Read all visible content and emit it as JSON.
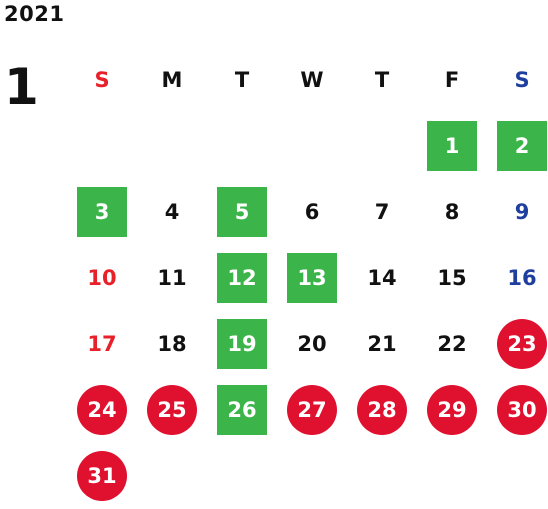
{
  "year": "2021",
  "month": "1",
  "weekdays": [
    "S",
    "M",
    "T",
    "W",
    "T",
    "F",
    "S"
  ],
  "colors": {
    "sunday": "#e8202a",
    "saturday": "#1f3f9f",
    "green_highlight": "#3bb54a",
    "red_highlight": "#e0102f"
  },
  "days": [
    {
      "day": "1",
      "style": "green"
    },
    {
      "day": "2",
      "style": "green"
    },
    {
      "day": "3",
      "style": "green"
    },
    {
      "day": "4",
      "style": "plain"
    },
    {
      "day": "5",
      "style": "green"
    },
    {
      "day": "6",
      "style": "plain"
    },
    {
      "day": "7",
      "style": "plain"
    },
    {
      "day": "8",
      "style": "plain"
    },
    {
      "day": "9",
      "style": "plain"
    },
    {
      "day": "10",
      "style": "plain"
    },
    {
      "day": "11",
      "style": "plain"
    },
    {
      "day": "12",
      "style": "green"
    },
    {
      "day": "13",
      "style": "green"
    },
    {
      "day": "14",
      "style": "plain"
    },
    {
      "day": "15",
      "style": "plain"
    },
    {
      "day": "16",
      "style": "plain"
    },
    {
      "day": "17",
      "style": "plain"
    },
    {
      "day": "18",
      "style": "plain"
    },
    {
      "day": "19",
      "style": "green"
    },
    {
      "day": "20",
      "style": "plain"
    },
    {
      "day": "21",
      "style": "plain"
    },
    {
      "day": "22",
      "style": "plain"
    },
    {
      "day": "23",
      "style": "red"
    },
    {
      "day": "24",
      "style": "red"
    },
    {
      "day": "25",
      "style": "red"
    },
    {
      "day": "26",
      "style": "green"
    },
    {
      "day": "27",
      "style": "red"
    },
    {
      "day": "28",
      "style": "red"
    },
    {
      "day": "29",
      "style": "red"
    },
    {
      "day": "30",
      "style": "red"
    },
    {
      "day": "31",
      "style": "red"
    }
  ]
}
